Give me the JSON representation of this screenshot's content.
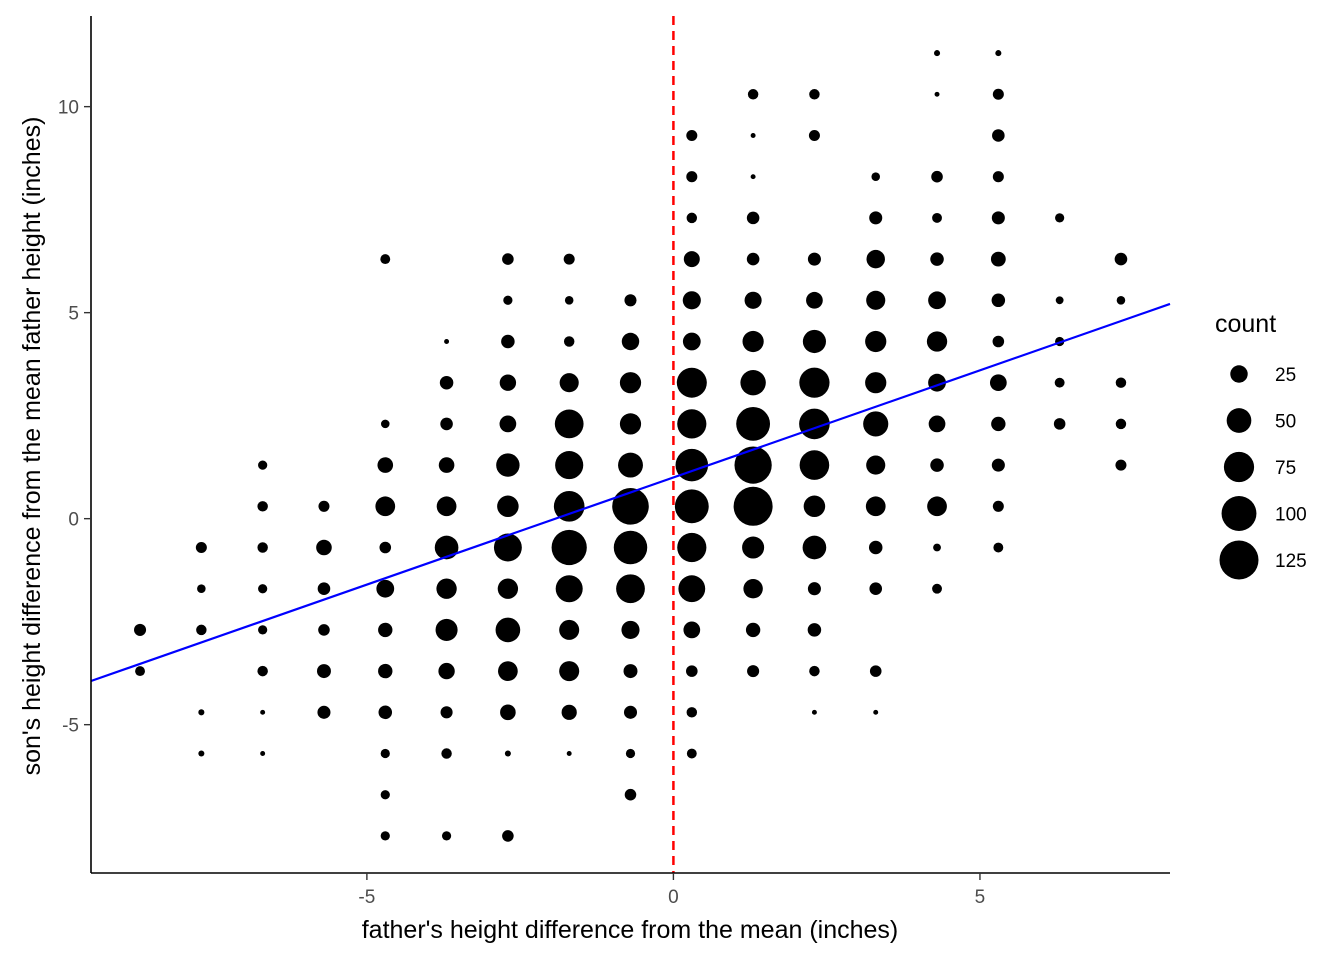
{
  "chart_data": {
    "type": "scatter",
    "xlabel": "father's height difference from the mean (inches)",
    "ylabel": "son's height difference from the mean father height (inches)",
    "xlim": [
      -9.5,
      8.1
    ],
    "ylim": [
      -8.6,
      12.2
    ],
    "x_ticks": [
      -5,
      0,
      5
    ],
    "y_ticks": [
      -5,
      0,
      5,
      10
    ],
    "x_tick_labels": [
      "-5",
      "0",
      "5"
    ],
    "y_tick_labels": [
      "-5",
      "0",
      "5",
      "10"
    ],
    "grid": false,
    "point_color": "#000000",
    "size_legend": {
      "title": "count",
      "values": [
        25,
        50,
        75,
        100,
        125
      ],
      "labels": [
        "25",
        "50",
        "75",
        "100",
        "125"
      ],
      "placement": "right"
    },
    "regression_line": {
      "color": "#0000ff",
      "intercept": 1.0,
      "slope": 0.52
    },
    "reference_line": {
      "x": 0,
      "color": "#ff0000",
      "style": "dashed"
    },
    "points": [
      {
        "x": -8.7,
        "y": -2.7,
        "count": 12
      },
      {
        "x": -8.7,
        "y": -3.7,
        "count": 8
      },
      {
        "x": -7.7,
        "y": -0.7,
        "count": 10
      },
      {
        "x": -7.7,
        "y": -1.7,
        "count": 6
      },
      {
        "x": -7.7,
        "y": -2.7,
        "count": 9
      },
      {
        "x": -7.7,
        "y": -4.7,
        "count": 3
      },
      {
        "x": -7.7,
        "y": -5.7,
        "count": 3
      },
      {
        "x": -6.7,
        "y": 1.3,
        "count": 7
      },
      {
        "x": -6.7,
        "y": 0.3,
        "count": 9
      },
      {
        "x": -6.7,
        "y": -0.7,
        "count": 9
      },
      {
        "x": -6.7,
        "y": -1.7,
        "count": 7
      },
      {
        "x": -6.7,
        "y": -2.7,
        "count": 7
      },
      {
        "x": -6.7,
        "y": -3.7,
        "count": 9
      },
      {
        "x": -6.7,
        "y": -4.7,
        "count": 2
      },
      {
        "x": -6.7,
        "y": -5.7,
        "count": 2
      },
      {
        "x": -5.7,
        "y": 0.3,
        "count": 10
      },
      {
        "x": -5.7,
        "y": -0.7,
        "count": 20
      },
      {
        "x": -5.7,
        "y": -1.7,
        "count": 13
      },
      {
        "x": -5.7,
        "y": -2.7,
        "count": 11
      },
      {
        "x": -5.7,
        "y": -3.7,
        "count": 16
      },
      {
        "x": -5.7,
        "y": -4.7,
        "count": 14
      },
      {
        "x": -4.7,
        "y": 6.3,
        "count": 8
      },
      {
        "x": -4.7,
        "y": 2.3,
        "count": 6
      },
      {
        "x": -4.7,
        "y": 1.3,
        "count": 20
      },
      {
        "x": -4.7,
        "y": 0.3,
        "count": 32
      },
      {
        "x": -4.7,
        "y": -0.7,
        "count": 11
      },
      {
        "x": -4.7,
        "y": -1.7,
        "count": 26
      },
      {
        "x": -4.7,
        "y": -2.7,
        "count": 17
      },
      {
        "x": -4.7,
        "y": -3.7,
        "count": 17
      },
      {
        "x": -4.7,
        "y": -4.7,
        "count": 15
      },
      {
        "x": -4.7,
        "y": -5.7,
        "count": 7
      },
      {
        "x": -4.7,
        "y": -6.7,
        "count": 7
      },
      {
        "x": -4.7,
        "y": -7.7,
        "count": 7
      },
      {
        "x": -3.7,
        "y": 4.3,
        "count": 2
      },
      {
        "x": -3.7,
        "y": 3.3,
        "count": 15
      },
      {
        "x": -3.7,
        "y": 2.3,
        "count": 13
      },
      {
        "x": -3.7,
        "y": 1.3,
        "count": 20
      },
      {
        "x": -3.7,
        "y": 0.3,
        "count": 32
      },
      {
        "x": -3.7,
        "y": -0.7,
        "count": 46
      },
      {
        "x": -3.7,
        "y": -1.7,
        "count": 34
      },
      {
        "x": -3.7,
        "y": -2.7,
        "count": 40
      },
      {
        "x": -3.7,
        "y": -3.7,
        "count": 22
      },
      {
        "x": -3.7,
        "y": -4.7,
        "count": 12
      },
      {
        "x": -3.7,
        "y": -5.7,
        "count": 9
      },
      {
        "x": -3.7,
        "y": -7.7,
        "count": 7
      },
      {
        "x": -2.7,
        "y": 6.3,
        "count": 11
      },
      {
        "x": -2.7,
        "y": 5.3,
        "count": 7
      },
      {
        "x": -2.7,
        "y": 4.3,
        "count": 15
      },
      {
        "x": -2.7,
        "y": 3.3,
        "count": 22
      },
      {
        "x": -2.7,
        "y": 2.3,
        "count": 23
      },
      {
        "x": -2.7,
        "y": 1.3,
        "count": 45
      },
      {
        "x": -2.7,
        "y": 0.3,
        "count": 38
      },
      {
        "x": -2.7,
        "y": -0.7,
        "count": 64
      },
      {
        "x": -2.7,
        "y": -1.7,
        "count": 34
      },
      {
        "x": -2.7,
        "y": -2.7,
        "count": 50
      },
      {
        "x": -2.7,
        "y": -3.7,
        "count": 32
      },
      {
        "x": -2.7,
        "y": -4.7,
        "count": 20
      },
      {
        "x": -2.7,
        "y": -5.7,
        "count": 3
      },
      {
        "x": -2.7,
        "y": -7.7,
        "count": 11
      },
      {
        "x": -1.7,
        "y": 6.3,
        "count": 10
      },
      {
        "x": -1.7,
        "y": 5.3,
        "count": 6
      },
      {
        "x": -1.7,
        "y": 4.3,
        "count": 9
      },
      {
        "x": -1.7,
        "y": 3.3,
        "count": 30
      },
      {
        "x": -1.7,
        "y": 2.3,
        "count": 68
      },
      {
        "x": -1.7,
        "y": 1.3,
        "count": 65
      },
      {
        "x": -1.7,
        "y": 0.3,
        "count": 77
      },
      {
        "x": -1.7,
        "y": -0.7,
        "count": 102
      },
      {
        "x": -1.7,
        "y": -1.7,
        "count": 60
      },
      {
        "x": -1.7,
        "y": -2.7,
        "count": 33
      },
      {
        "x": -1.7,
        "y": -3.7,
        "count": 33
      },
      {
        "x": -1.7,
        "y": -4.7,
        "count": 19
      },
      {
        "x": -1.7,
        "y": -5.7,
        "count": 2
      },
      {
        "x": -0.7,
        "y": 5.3,
        "count": 12
      },
      {
        "x": -0.7,
        "y": 4.3,
        "count": 25
      },
      {
        "x": -0.7,
        "y": 3.3,
        "count": 37
      },
      {
        "x": -0.7,
        "y": 2.3,
        "count": 37
      },
      {
        "x": -0.7,
        "y": 1.3,
        "count": 51
      },
      {
        "x": -0.7,
        "y": 0.3,
        "count": 110
      },
      {
        "x": -0.7,
        "y": -0.7,
        "count": 92
      },
      {
        "x": -0.7,
        "y": -1.7,
        "count": 68
      },
      {
        "x": -0.7,
        "y": -2.7,
        "count": 27
      },
      {
        "x": -0.7,
        "y": -3.7,
        "count": 16
      },
      {
        "x": -0.7,
        "y": -4.7,
        "count": 14
      },
      {
        "x": -0.7,
        "y": -5.7,
        "count": 7
      },
      {
        "x": -0.7,
        "y": -6.7,
        "count": 11
      },
      {
        "x": 0.3,
        "y": 9.3,
        "count": 10
      },
      {
        "x": 0.3,
        "y": 8.3,
        "count": 10
      },
      {
        "x": 0.3,
        "y": 7.3,
        "count": 9
      },
      {
        "x": 0.3,
        "y": 6.3,
        "count": 21
      },
      {
        "x": 0.3,
        "y": 5.3,
        "count": 27
      },
      {
        "x": 0.3,
        "y": 4.3,
        "count": 26
      },
      {
        "x": 0.3,
        "y": 3.3,
        "count": 74
      },
      {
        "x": 0.3,
        "y": 2.3,
        "count": 70
      },
      {
        "x": 0.3,
        "y": 1.3,
        "count": 87
      },
      {
        "x": 0.3,
        "y": 0.3,
        "count": 94
      },
      {
        "x": 0.3,
        "y": -0.7,
        "count": 70
      },
      {
        "x": 0.3,
        "y": -1.7,
        "count": 59
      },
      {
        "x": 0.3,
        "y": -2.7,
        "count": 23
      },
      {
        "x": 0.3,
        "y": -3.7,
        "count": 11
      },
      {
        "x": 0.3,
        "y": -4.7,
        "count": 9
      },
      {
        "x": 0.3,
        "y": -5.7,
        "count": 8
      },
      {
        "x": 1.3,
        "y": 10.3,
        "count": 9
      },
      {
        "x": 1.3,
        "y": 9.3,
        "count": 2
      },
      {
        "x": 1.3,
        "y": 8.3,
        "count": 2
      },
      {
        "x": 1.3,
        "y": 7.3,
        "count": 13
      },
      {
        "x": 1.3,
        "y": 6.3,
        "count": 13
      },
      {
        "x": 1.3,
        "y": 5.3,
        "count": 24
      },
      {
        "x": 1.3,
        "y": 4.3,
        "count": 37
      },
      {
        "x": 1.3,
        "y": 3.3,
        "count": 53
      },
      {
        "x": 1.3,
        "y": 2.3,
        "count": 94
      },
      {
        "x": 1.3,
        "y": 1.3,
        "count": 114
      },
      {
        "x": 1.3,
        "y": 0.3,
        "count": 125
      },
      {
        "x": 1.3,
        "y": -0.7,
        "count": 40
      },
      {
        "x": 1.3,
        "y": -1.7,
        "count": 31
      },
      {
        "x": 1.3,
        "y": -2.7,
        "count": 17
      },
      {
        "x": 1.3,
        "y": -3.7,
        "count": 12
      },
      {
        "x": 2.3,
        "y": 10.3,
        "count": 9
      },
      {
        "x": 2.3,
        "y": 9.3,
        "count": 10
      },
      {
        "x": 2.3,
        "y": 6.3,
        "count": 14
      },
      {
        "x": 2.3,
        "y": 5.3,
        "count": 23
      },
      {
        "x": 2.3,
        "y": 4.3,
        "count": 44
      },
      {
        "x": 2.3,
        "y": 3.3,
        "count": 75
      },
      {
        "x": 2.3,
        "y": 2.3,
        "count": 77
      },
      {
        "x": 2.3,
        "y": 1.3,
        "count": 72
      },
      {
        "x": 2.3,
        "y": 0.3,
        "count": 38
      },
      {
        "x": 2.3,
        "y": -0.7,
        "count": 46
      },
      {
        "x": 2.3,
        "y": -1.7,
        "count": 14
      },
      {
        "x": 2.3,
        "y": -2.7,
        "count": 15
      },
      {
        "x": 2.3,
        "y": -3.7,
        "count": 9
      },
      {
        "x": 2.3,
        "y": -4.7,
        "count": 2
      },
      {
        "x": 3.3,
        "y": 8.3,
        "count": 6
      },
      {
        "x": 3.3,
        "y": 7.3,
        "count": 14
      },
      {
        "x": 3.3,
        "y": 6.3,
        "count": 28
      },
      {
        "x": 3.3,
        "y": 5.3,
        "count": 30
      },
      {
        "x": 3.3,
        "y": 4.3,
        "count": 37
      },
      {
        "x": 3.3,
        "y": 3.3,
        "count": 37
      },
      {
        "x": 3.3,
        "y": 2.3,
        "count": 52
      },
      {
        "x": 3.3,
        "y": 1.3,
        "count": 30
      },
      {
        "x": 3.3,
        "y": 0.3,
        "count": 32
      },
      {
        "x": 3.3,
        "y": -0.7,
        "count": 15
      },
      {
        "x": 3.3,
        "y": -1.7,
        "count": 13
      },
      {
        "x": 3.3,
        "y": -3.7,
        "count": 11
      },
      {
        "x": 3.3,
        "y": -4.7,
        "count": 2
      },
      {
        "x": 4.3,
        "y": 11.3,
        "count": 3
      },
      {
        "x": 4.3,
        "y": 10.3,
        "count": 2
      },
      {
        "x": 4.3,
        "y": 8.3,
        "count": 11
      },
      {
        "x": 4.3,
        "y": 7.3,
        "count": 8
      },
      {
        "x": 4.3,
        "y": 6.3,
        "count": 15
      },
      {
        "x": 4.3,
        "y": 5.3,
        "count": 26
      },
      {
        "x": 4.3,
        "y": 4.3,
        "count": 34
      },
      {
        "x": 4.3,
        "y": 3.3,
        "count": 26
      },
      {
        "x": 4.3,
        "y": 2.3,
        "count": 23
      },
      {
        "x": 4.3,
        "y": 1.3,
        "count": 15
      },
      {
        "x": 4.3,
        "y": 0.3,
        "count": 32
      },
      {
        "x": 4.3,
        "y": -0.7,
        "count": 5
      },
      {
        "x": 4.3,
        "y": -1.7,
        "count": 8
      },
      {
        "x": 5.3,
        "y": 11.3,
        "count": 3
      },
      {
        "x": 5.3,
        "y": 10.3,
        "count": 10
      },
      {
        "x": 5.3,
        "y": 9.3,
        "count": 13
      },
      {
        "x": 5.3,
        "y": 8.3,
        "count": 10
      },
      {
        "x": 5.3,
        "y": 7.3,
        "count": 14
      },
      {
        "x": 5.3,
        "y": 6.3,
        "count": 18
      },
      {
        "x": 5.3,
        "y": 5.3,
        "count": 15
      },
      {
        "x": 5.3,
        "y": 4.3,
        "count": 11
      },
      {
        "x": 5.3,
        "y": 3.3,
        "count": 23
      },
      {
        "x": 5.3,
        "y": 2.3,
        "count": 17
      },
      {
        "x": 5.3,
        "y": 1.3,
        "count": 14
      },
      {
        "x": 5.3,
        "y": 0.3,
        "count": 10
      },
      {
        "x": 5.3,
        "y": -0.7,
        "count": 8
      },
      {
        "x": 6.3,
        "y": 7.3,
        "count": 7
      },
      {
        "x": 6.3,
        "y": 5.3,
        "count": 5
      },
      {
        "x": 6.3,
        "y": 4.3,
        "count": 7
      },
      {
        "x": 6.3,
        "y": 3.3,
        "count": 8
      },
      {
        "x": 6.3,
        "y": 2.3,
        "count": 11
      },
      {
        "x": 7.3,
        "y": 6.3,
        "count": 13
      },
      {
        "x": 7.3,
        "y": 5.3,
        "count": 6
      },
      {
        "x": 7.3,
        "y": 3.3,
        "count": 9
      },
      {
        "x": 7.3,
        "y": 2.3,
        "count": 9
      },
      {
        "x": 7.3,
        "y": 1.3,
        "count": 10
      }
    ]
  }
}
